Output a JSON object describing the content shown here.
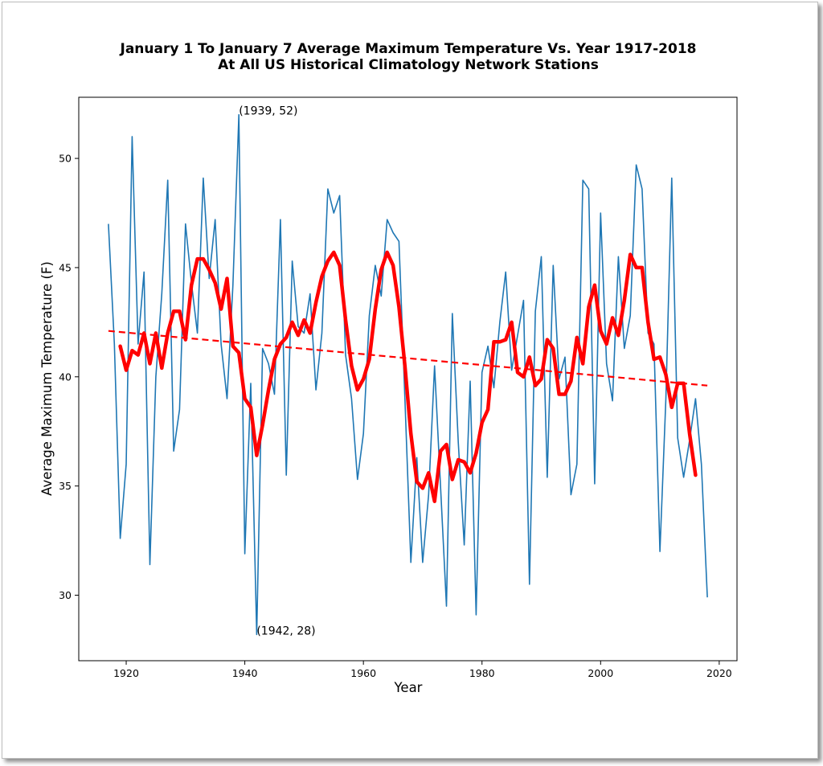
{
  "chart_data": {
    "type": "line",
    "title_line1": "January 1 To January 7 Average Maximum Temperature Vs. Year 1917-2018",
    "title_line2": "At All US Historical Climatology Network Stations",
    "xlabel": "Year",
    "ylabel": "Average Maximum Temperature (F)",
    "xlim": [
      1912,
      2023
    ],
    "ylim": [
      27,
      52.8
    ],
    "xticks": [
      1920,
      1940,
      1960,
      1980,
      2000,
      2020
    ],
    "yticks": [
      30,
      35,
      40,
      45,
      50
    ],
    "grid": false,
    "colors": {
      "annual": "#1f77b4",
      "smoothed": "#ff0000",
      "trend": "#ff0000"
    },
    "series": [
      {
        "style": "annual",
        "x": [
          1917,
          1918,
          1919,
          1920,
          1921,
          1922,
          1923,
          1924,
          1925,
          1926,
          1927,
          1928,
          1929,
          1930,
          1931,
          1932,
          1933,
          1934,
          1935,
          1936,
          1937,
          1938,
          1939,
          1940,
          1941,
          1942,
          1943,
          1944,
          1945,
          1946,
          1947,
          1948,
          1949,
          1950,
          1951,
          1952,
          1953,
          1954,
          1955,
          1956,
          1957,
          1958,
          1959,
          1960,
          1961,
          1962,
          1963,
          1964,
          1965,
          1966,
          1967,
          1968,
          1969,
          1970,
          1971,
          1972,
          1973,
          1974,
          1975,
          1976,
          1977,
          1978,
          1979,
          1980,
          1981,
          1982,
          1983,
          1984,
          1985,
          1986,
          1987,
          1988,
          1989,
          1990,
          1991,
          1992,
          1993,
          1994,
          1995,
          1996,
          1997,
          1998,
          1999,
          2000,
          2001,
          2002,
          2003,
          2004,
          2005,
          2006,
          2007,
          2008,
          2009,
          2010,
          2011,
          2012,
          2013,
          2014,
          2015,
          2016,
          2017,
          2018
        ],
        "y": [
          47.0,
          41.5,
          32.6,
          36.0,
          51.0,
          41.5,
          44.8,
          31.4,
          40.0,
          43.8,
          49.0,
          36.6,
          38.5,
          47.0,
          44.3,
          42.0,
          49.1,
          44.5,
          47.2,
          41.5,
          39.0,
          44.2,
          52.0,
          31.9,
          39.7,
          28.2,
          41.3,
          40.6,
          39.2,
          47.2,
          35.5,
          45.3,
          42.3,
          42.0,
          43.8,
          39.4,
          42.0,
          48.6,
          47.5,
          48.3,
          41.0,
          39.0,
          35.3,
          37.4,
          42.8,
          45.1,
          43.7,
          47.2,
          46.6,
          46.2,
          39.0,
          31.5,
          36.3,
          31.5,
          34.6,
          40.5,
          35.0,
          29.5,
          42.9,
          37.0,
          32.3,
          39.8,
          29.1,
          40.2,
          41.4,
          39.5,
          42.5,
          44.8,
          40.3,
          41.9,
          43.5,
          30.5,
          43.0,
          45.5,
          35.4,
          45.1,
          39.9,
          40.9,
          34.6,
          36.0,
          49.0,
          48.6,
          35.1,
          47.5,
          40.6,
          38.9,
          45.5,
          41.3,
          42.8,
          49.7,
          48.6,
          42.0,
          41.5,
          32.0,
          39.0,
          49.1,
          37.2,
          35.4,
          37.1,
          39.0,
          36.0,
          29.9
        ]
      },
      {
        "style": "smoothed",
        "x": [
          1919,
          1920,
          1921,
          1922,
          1923,
          1924,
          1925,
          1926,
          1927,
          1928,
          1929,
          1930,
          1931,
          1932,
          1933,
          1934,
          1935,
          1936,
          1937,
          1938,
          1939,
          1940,
          1941,
          1942,
          1943,
          1944,
          1945,
          1946,
          1947,
          1948,
          1949,
          1950,
          1951,
          1952,
          1953,
          1954,
          1955,
          1956,
          1957,
          1958,
          1959,
          1960,
          1961,
          1962,
          1963,
          1964,
          1965,
          1966,
          1967,
          1968,
          1969,
          1970,
          1971,
          1972,
          1973,
          1974,
          1975,
          1976,
          1977,
          1978,
          1979,
          1980,
          1981,
          1982,
          1983,
          1984,
          1985,
          1986,
          1987,
          1988,
          1989,
          1990,
          1991,
          1992,
          1993,
          1994,
          1995,
          1996,
          1997,
          1998,
          1999,
          2000,
          2001,
          2002,
          2003,
          2004,
          2005,
          2006,
          2007,
          2008,
          2009,
          2010,
          2011,
          2012,
          2013,
          2014,
          2015,
          2016
        ],
        "y": [
          41.4,
          40.3,
          41.2,
          41.0,
          42.0,
          40.6,
          42.0,
          40.4,
          42.0,
          43.0,
          43.0,
          41.7,
          44.2,
          45.4,
          45.4,
          44.9,
          44.3,
          43.1,
          44.5,
          41.4,
          41.1,
          39.0,
          38.6,
          36.4,
          37.8,
          39.4,
          40.8,
          41.5,
          41.8,
          42.5,
          41.9,
          42.6,
          42.0,
          43.4,
          44.6,
          45.3,
          45.7,
          45.1,
          42.6,
          40.5,
          39.4,
          39.9,
          40.8,
          43.1,
          44.9,
          45.7,
          45.1,
          43.2,
          40.5,
          37.4,
          35.2,
          34.9,
          35.6,
          34.3,
          36.6,
          36.9,
          35.3,
          36.2,
          36.1,
          35.6,
          36.5,
          37.9,
          38.5,
          41.6,
          41.6,
          41.7,
          42.5,
          40.2,
          40.0,
          40.9,
          39.6,
          39.9,
          41.7,
          41.3,
          39.2,
          39.2,
          39.8,
          41.8,
          40.6,
          43.2,
          44.2,
          42.1,
          41.5,
          42.7,
          41.9,
          43.5,
          45.6,
          45.0,
          45.0,
          42.5,
          40.8,
          40.9,
          40.1,
          38.6,
          39.7,
          39.7,
          37.4,
          35.5
        ]
      },
      {
        "style": "trend",
        "x": [
          1917,
          2018
        ],
        "y": [
          42.1,
          39.6
        ]
      }
    ],
    "annotations": [
      {
        "text": "(1939, 52)",
        "x": 1939,
        "y": 52.0
      },
      {
        "text": "(1942, 28)",
        "x": 1942,
        "y": 28.2
      }
    ]
  }
}
